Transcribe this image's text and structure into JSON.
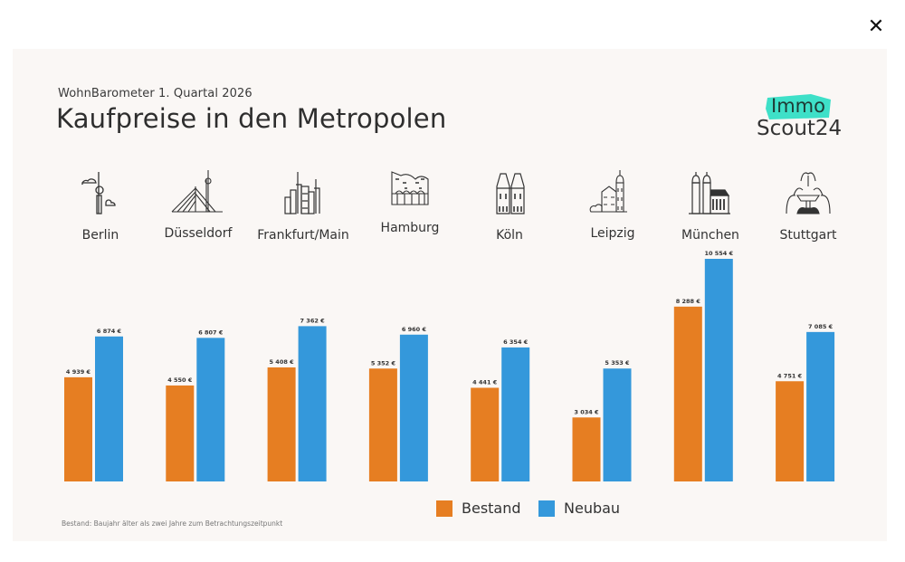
{
  "window": {
    "close_label": "✕"
  },
  "header": {
    "subtitle": "WohnBarometer 1. Quartal 2026",
    "title": "Kaufpreise in den Metropolen"
  },
  "logo": {
    "line1": "Immo",
    "line2": "Scout24",
    "accent": "#3ee0c8"
  },
  "cities": [
    {
      "name": "Berlin",
      "icon": "tv-tower-icon"
    },
    {
      "name": "Düsseldorf",
      "icon": "bridge-tower-icon"
    },
    {
      "name": "Frankfurt/Main",
      "icon": "skyline-icon"
    },
    {
      "name": "Hamburg",
      "icon": "elbphilharmonie-icon"
    },
    {
      "name": "Köln",
      "icon": "cathedral-icon"
    },
    {
      "name": "Leipzig",
      "icon": "old-town-hall-icon"
    },
    {
      "name": "München",
      "icon": "frauenkirche-icon"
    },
    {
      "name": "Stuttgart",
      "icon": "fountain-icon"
    }
  ],
  "chart_data": {
    "type": "bar",
    "title": "Kaufpreise in den Metropolen",
    "subtitle": "WohnBarometer 1. Quartal 2026",
    "xlabel": "",
    "ylabel": "",
    "ylim": [
      0,
      10554
    ],
    "grid": false,
    "legend_position": "bottom",
    "categories": [
      "Berlin",
      "Düsseldorf",
      "Frankfurt/Main",
      "Hamburg",
      "Köln",
      "Leipzig",
      "München",
      "Stuttgart"
    ],
    "series": [
      {
        "name": "Bestand",
        "color": "#e67e22",
        "values": [
          4939,
          4550,
          5408,
          5352,
          4441,
          3034,
          8288,
          4751
        ],
        "labels": [
          "4 939 €",
          "4 550 €",
          "5 408 €",
          "5 352 €",
          "4 441 €",
          "3 034 €",
          "8 288 €",
          "4 751 €"
        ]
      },
      {
        "name": "Neubau",
        "color": "#3498db",
        "values": [
          6874,
          6807,
          7362,
          6960,
          6354,
          5353,
          10554,
          7085
        ],
        "labels": [
          "6 874 €",
          "6 807 €",
          "7 362 €",
          "6 960 €",
          "6 354 €",
          "5 353 €",
          "10 554 €",
          "7 085 €"
        ]
      }
    ]
  },
  "legend": {
    "bestand": "Bestand",
    "neubau": "Neubau"
  },
  "footnote": "Bestand: Baujahr älter als zwei Jahre zum Betrachtungszeitpunkt"
}
